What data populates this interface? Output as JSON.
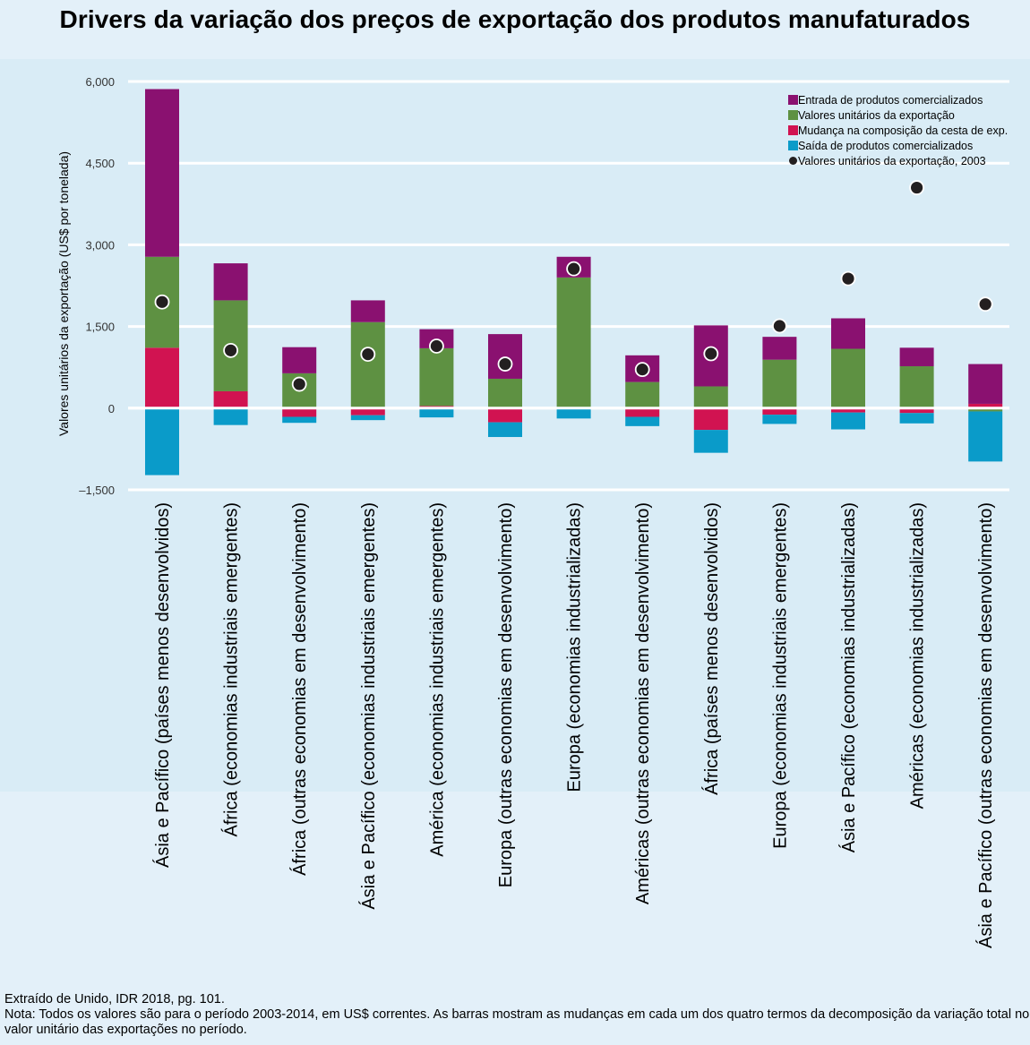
{
  "title": "Drivers da variação dos preços de exportação dos produtos manufaturados",
  "footer": {
    "source": "Extraído de Unido, IDR 2018, pg. 101.",
    "note": "Nota: Todos os valores são para o período 2003-2014, em US$ correntes. As barras mostram as mudanças em cada um dos quatro termos da decomposição da variação total no valor unitário das exportações no período."
  },
  "chart_data": {
    "type": "bar",
    "stacked": true,
    "ylabel": "Valores unitários da exportação (US$ por tonelada)",
    "ylim": [
      -1500,
      6000
    ],
    "yticks": [
      6000,
      4500,
      3000,
      1500,
      0,
      -1500
    ],
    "ytick_labels": [
      "6,000",
      "4,500",
      "3,000",
      "1,500",
      "0",
      "–1,500"
    ],
    "grid": true,
    "legend_position": "top-right",
    "categories": [
      "Ásia e Pacífico (países menos desenvolvidos)",
      "África (economias industriais emergentes)",
      "África (outras economias em desenvolvimento)",
      "Ásia e Pacífico (economias industriais emergentes)",
      "América (economias industriais emergentes)",
      "Europa (outras economias em desenvolvimento)",
      "Europa (economias industrializadas)",
      "Américas (outras economias em desenvolvimento)",
      "África (países menos desenvolvidos)",
      "Europa (economias industriais emergentes)",
      "Ásia e Pacífico (economias industrializadas)",
      "Américas (economias industrializadas)",
      "Ásia e Pacífico (outras economias em desenvolvimento)"
    ],
    "series": [
      {
        "name": "Entrada de produtos comercializados",
        "color": "#8a1170",
        "values": [
          3080,
          680,
          480,
          400,
          350,
          820,
          380,
          490,
          1120,
          420,
          560,
          340,
          730
        ]
      },
      {
        "name": "Valores unitários da exportação",
        "color": "#5e9142",
        "values": [
          1670,
          1670,
          640,
          1580,
          1060,
          540,
          2400,
          480,
          400,
          890,
          1090,
          770,
          -60
        ]
      },
      {
        "name": "Mudança na composição da cesta de exp.",
        "color": "#d11351",
        "values": [
          1110,
          310,
          -160,
          -130,
          40,
          -260,
          0,
          -160,
          -400,
          -120,
          -80,
          -90,
          80
        ]
      },
      {
        "name": "Saída de produtos comercializados",
        "color": "#0a9bc9",
        "values": [
          -1230,
          -310,
          -110,
          -90,
          -170,
          -270,
          -190,
          -170,
          -420,
          -170,
          -310,
          -190,
          -920
        ]
      }
    ],
    "markers": {
      "name": "Valores unitários da exportação, 2003",
      "color": "#231f20",
      "values": [
        1950,
        1060,
        440,
        990,
        1140,
        810,
        2560,
        710,
        1000,
        1510,
        2380,
        4050,
        1910
      ]
    }
  }
}
